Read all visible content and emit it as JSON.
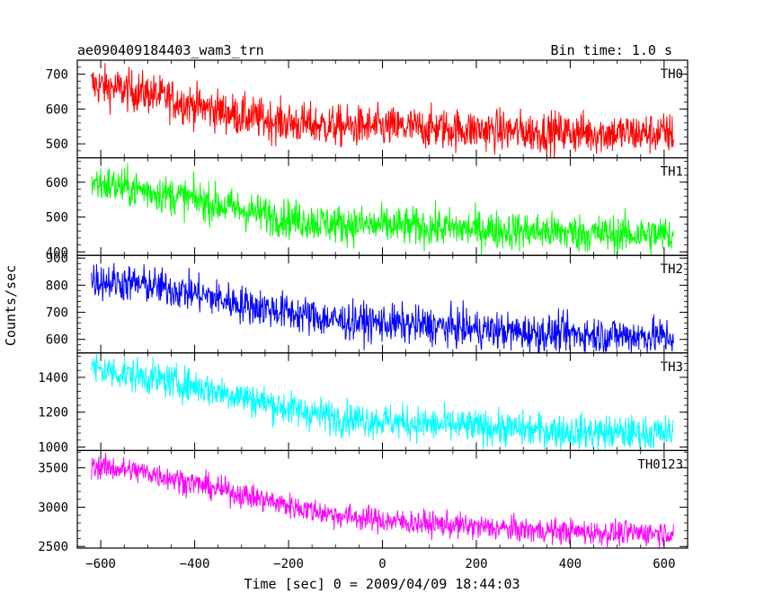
{
  "chart_data": {
    "type": "line",
    "title_left": "ae090409184403_wam3_trn",
    "title_right": "Bin time: 1.0 s",
    "xlabel": "Time [sec] 0 = 2009/04/09 18:44:03",
    "ylabel": "Counts/sec",
    "xlim": [
      -650,
      650
    ],
    "x_range": [
      -620,
      620
    ],
    "xticks": [
      -600,
      -400,
      -200,
      0,
      200,
      400,
      600
    ],
    "panels": [
      {
        "name": "TH0",
        "color": "#ff0000",
        "ylim": [
          460,
          740
        ],
        "yticks": [
          500,
          600,
          700
        ],
        "trend": [
          [
            -620,
            670
          ],
          [
            -500,
            645
          ],
          [
            -400,
            610
          ],
          [
            -300,
            580
          ],
          [
            -200,
            560
          ],
          [
            -100,
            550
          ],
          [
            100,
            545
          ],
          [
            300,
            535
          ],
          [
            500,
            530
          ],
          [
            620,
            530
          ]
        ],
        "noise": 30
      },
      {
        "name": "TH1",
        "color": "#00ff00",
        "ylim": [
          390,
          670
        ],
        "yticks": [
          400,
          500,
          600
        ],
        "trend": [
          [
            -620,
            600
          ],
          [
            -500,
            575
          ],
          [
            -400,
            550
          ],
          [
            -300,
            520
          ],
          [
            -200,
            495
          ],
          [
            -100,
            480
          ],
          [
            100,
            470
          ],
          [
            300,
            460
          ],
          [
            500,
            450
          ],
          [
            620,
            450
          ]
        ],
        "noise": 28
      },
      {
        "name": "TH2",
        "color": "#0000ff",
        "ylim": [
          550,
          910
        ],
        "yticks": [
          600,
          700,
          800,
          900
        ],
        "trend": [
          [
            -620,
            820
          ],
          [
            -500,
            800
          ],
          [
            -400,
            770
          ],
          [
            -300,
            730
          ],
          [
            -200,
            700
          ],
          [
            -100,
            670
          ],
          [
            100,
            650
          ],
          [
            300,
            625
          ],
          [
            500,
            615
          ],
          [
            620,
            610
          ]
        ],
        "noise": 35
      },
      {
        "name": "TH3",
        "color": "#00ffff",
        "ylim": [
          980,
          1540
        ],
        "yticks": [
          1000,
          1200,
          1400
        ],
        "trend": [
          [
            -620,
            1450
          ],
          [
            -500,
            1400
          ],
          [
            -400,
            1350
          ],
          [
            -300,
            1290
          ],
          [
            -200,
            1220
          ],
          [
            -100,
            1170
          ],
          [
            100,
            1130
          ],
          [
            300,
            1100
          ],
          [
            500,
            1080
          ],
          [
            620,
            1080
          ]
        ],
        "noise": 50
      },
      {
        "name": "TH0123",
        "color": "#ff00ff",
        "ylim": [
          2480,
          3720
        ],
        "yticks": [
          2500,
          3000,
          3500
        ],
        "trend": [
          [
            -620,
            3530
          ],
          [
            -500,
            3440
          ],
          [
            -400,
            3300
          ],
          [
            -300,
            3160
          ],
          [
            -200,
            3020
          ],
          [
            -100,
            2900
          ],
          [
            0,
            2830
          ],
          [
            100,
            2790
          ],
          [
            300,
            2710
          ],
          [
            500,
            2670
          ],
          [
            620,
            2680
          ]
        ],
        "noise": 80
      }
    ]
  }
}
